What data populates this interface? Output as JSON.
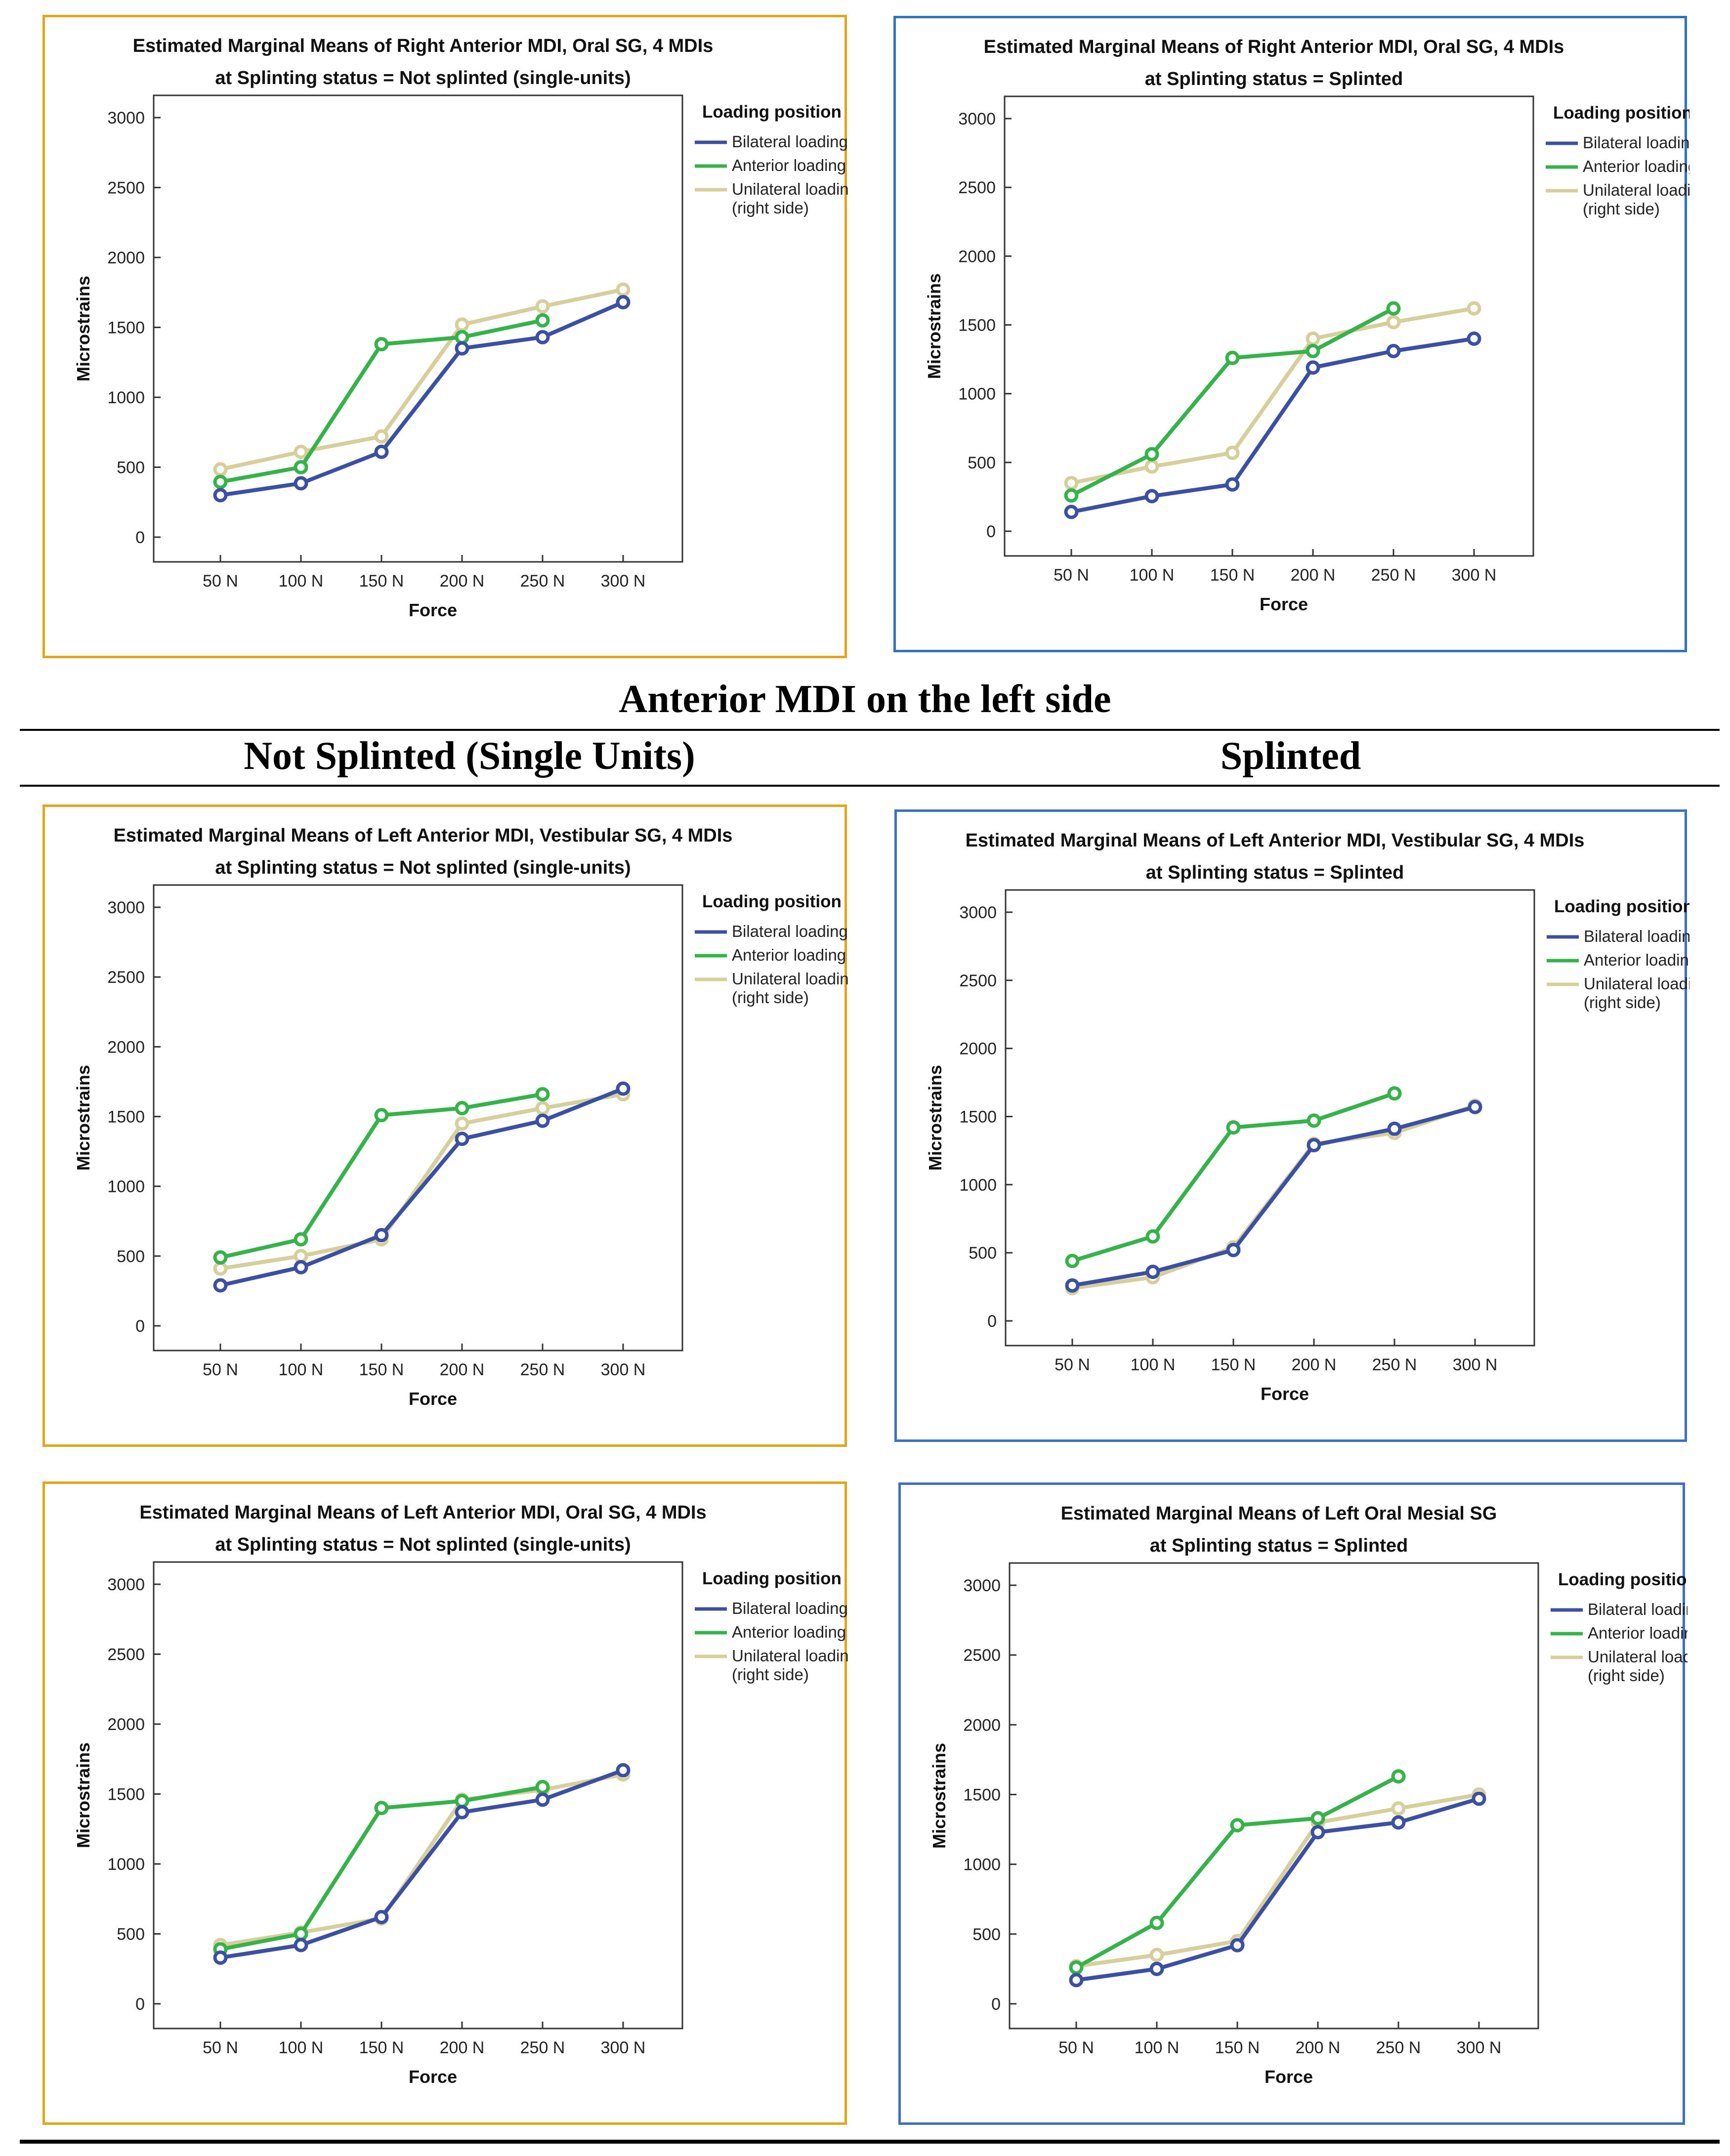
{
  "section": {
    "title": "Anterior MDI on the left side",
    "col_left": "Not Splinted (Single Units)",
    "col_right": "Splinted"
  },
  "colors": {
    "bilateral": "#3c50a3",
    "anterior": "#36b24a",
    "unilateral": "#d6cf9b",
    "gold_frame": "#e3a51a",
    "blue_frame": "#2f74bd"
  },
  "chart_data": [
    {
      "type": "line",
      "title": "Estimated Marginal Means of Right Anterior MDI, Oral SG, 4 MDIs",
      "subtitle": "at Splinting status = Not splinted (single-units)",
      "xlabel": "Force",
      "ylabel": "Microstrains",
      "categories": [
        "50 N",
        "100 N",
        "150 N",
        "200 N",
        "250 N",
        "300 N"
      ],
      "yticks": [
        "0",
        "500",
        "1000",
        "1500",
        "2000",
        "2500",
        "3000"
      ],
      "ylim": [
        0,
        3000
      ],
      "legend_title": "Loading position",
      "legend_position": "right",
      "series": [
        {
          "name": "Bilateral loading",
          "values": [
            300,
            385,
            610,
            1350,
            1430,
            1680
          ]
        },
        {
          "name": "Anterior loading",
          "values": [
            395,
            500,
            1380,
            1430,
            1550,
            null
          ]
        },
        {
          "name": "Unilateral loading",
          "name2": "(right side)",
          "values": [
            485,
            610,
            720,
            1520,
            1650,
            1770
          ]
        }
      ]
    },
    {
      "type": "line",
      "title": "Estimated Marginal Means of Right Anterior MDI, Oral SG, 4 MDIs",
      "subtitle": "at Splinting status = Splinted",
      "xlabel": "Force",
      "ylabel": "Microstrains",
      "categories": [
        "50 N",
        "100 N",
        "150 N",
        "200 N",
        "250 N",
        "300 N"
      ],
      "yticks": [
        "0",
        "500",
        "1000",
        "1500",
        "2000",
        "2500",
        "3000"
      ],
      "ylim": [
        0,
        3000
      ],
      "legend_title": "Loading position",
      "legend_position": "right",
      "series": [
        {
          "name": "Bilateral loading",
          "values": [
            140,
            255,
            340,
            1190,
            1310,
            1400
          ]
        },
        {
          "name": "Anterior loading",
          "values": [
            260,
            560,
            1260,
            1310,
            1620,
            null
          ]
        },
        {
          "name": "Unilateral loading",
          "name2": "(right side)",
          "values": [
            350,
            470,
            570,
            1400,
            1520,
            1620
          ]
        }
      ]
    },
    {
      "type": "line",
      "title": "Estimated Marginal Means of Left Anterior MDI, Vestibular SG, 4 MDIs",
      "subtitle": "at Splinting status = Not splinted (single-units)",
      "xlabel": "Force",
      "ylabel": "Microstrains",
      "categories": [
        "50 N",
        "100 N",
        "150 N",
        "200 N",
        "250 N",
        "300 N"
      ],
      "yticks": [
        "0",
        "500",
        "1000",
        "1500",
        "2000",
        "2500",
        "3000"
      ],
      "ylim": [
        0,
        3000
      ],
      "legend_title": "Loading position",
      "legend_position": "right",
      "series": [
        {
          "name": "Bilateral loading",
          "values": [
            290,
            420,
            650,
            1340,
            1470,
            1700
          ]
        },
        {
          "name": "Anterior loading",
          "values": [
            490,
            620,
            1510,
            1560,
            1660,
            null
          ]
        },
        {
          "name": "Unilateral loading",
          "name2": "(right side)",
          "values": [
            410,
            500,
            620,
            1450,
            1560,
            1660
          ]
        }
      ]
    },
    {
      "type": "line",
      "title": "Estimated Marginal Means of Left Anterior MDI, Vestibular SG, 4 MDIs",
      "subtitle": "at Splinting status = Splinted",
      "xlabel": "Force",
      "ylabel": "Microstrains",
      "categories": [
        "50 N",
        "100 N",
        "150 N",
        "200 N",
        "250 N",
        "300 N"
      ],
      "yticks": [
        "0",
        "500",
        "1000",
        "1500",
        "2000",
        "2500",
        "3000"
      ],
      "ylim": [
        0,
        3000
      ],
      "legend_title": "Loading position",
      "legend_position": "right",
      "series": [
        {
          "name": "Bilateral loading",
          "values": [
            260,
            360,
            520,
            1290,
            1410,
            1570
          ]
        },
        {
          "name": "Anterior loading",
          "values": [
            440,
            620,
            1420,
            1470,
            1670,
            null
          ]
        },
        {
          "name": "Unilateral loading",
          "name2": "(right side)",
          "values": [
            240,
            320,
            540,
            1300,
            1380,
            1580
          ]
        }
      ]
    },
    {
      "type": "line",
      "title": "Estimated Marginal Means of Left Anterior MDI, Oral SG, 4 MDIs",
      "subtitle": "at Splinting status = Not splinted (single-units)",
      "xlabel": "Force",
      "ylabel": "Microstrains",
      "categories": [
        "50 N",
        "100 N",
        "150 N",
        "200 N",
        "250 N",
        "300 N"
      ],
      "yticks": [
        "0",
        "500",
        "1000",
        "1500",
        "2000",
        "2500",
        "3000"
      ],
      "ylim": [
        0,
        3000
      ],
      "legend_title": "Loading position",
      "legend_position": "right",
      "series": [
        {
          "name": "Bilateral loading",
          "values": [
            330,
            420,
            620,
            1370,
            1460,
            1670
          ]
        },
        {
          "name": "Anterior loading",
          "values": [
            390,
            500,
            1400,
            1450,
            1550,
            null
          ]
        },
        {
          "name": "Unilateral loading",
          "name2": "(right side)",
          "values": [
            420,
            510,
            610,
            1460,
            1530,
            1640
          ]
        }
      ]
    },
    {
      "type": "line",
      "title": "Estimated Marginal Means of Left Oral Mesial SG",
      "subtitle": "at Splinting status = Splinted",
      "xlabel": "Force",
      "ylabel": "Microstrains",
      "categories": [
        "50 N",
        "100 N",
        "150 N",
        "200 N",
        "250 N",
        "300 N"
      ],
      "yticks": [
        "0",
        "500",
        "1000",
        "1500",
        "2000",
        "2500",
        "3000"
      ],
      "ylim": [
        0,
        3000
      ],
      "legend_title": "Loading position",
      "legend_position": "right",
      "series": [
        {
          "name": "Bilateral loading",
          "values": [
            170,
            250,
            420,
            1230,
            1300,
            1470
          ]
        },
        {
          "name": "Anterior loading",
          "values": [
            260,
            580,
            1280,
            1330,
            1630,
            null
          ]
        },
        {
          "name": "Unilateral loading",
          "name2": "(right side)",
          "values": [
            270,
            350,
            450,
            1300,
            1400,
            1500
          ]
        }
      ]
    }
  ]
}
